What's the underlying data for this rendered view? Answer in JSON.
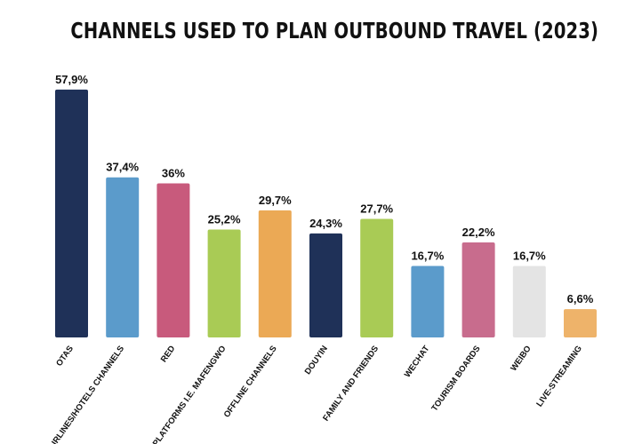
{
  "chart_data": {
    "type": "bar",
    "title": "CHANNELS USED TO PLAN OUTBOUND TRAVEL (2023)",
    "categories": [
      "OTAS",
      "AIRLINES/HOTELS CHANNELS",
      "RED",
      "UGC PLATFORMS I.E. MAFENGWO",
      "OFFLINE CHANNELS",
      "DOUYIN",
      "FAMILY AND FRIENDS",
      "WECHAT",
      "TOURISM BOARDS",
      "WEIBO",
      "LIVE-STREAMING"
    ],
    "values": [
      57.9,
      37.4,
      36,
      25.2,
      29.7,
      24.3,
      27.7,
      16.7,
      22.2,
      16.7,
      6.6
    ],
    "value_labels": [
      "57,9%",
      "37,4%",
      "36%",
      "25,2%",
      "29,7%",
      "24,3%",
      "27,7%",
      "16,7%",
      "22,2%",
      "16,7%",
      "6,6%"
    ],
    "colors": [
      "#1f3158",
      "#5b9bcb",
      "#c85a7c",
      "#a9cb55",
      "#eba955",
      "#1f3158",
      "#a9cb55",
      "#5b9bcb",
      "#c86c8d",
      "#e4e4e4",
      "#eeb36a"
    ],
    "ylim": [
      0,
      60
    ],
    "xlabel": "",
    "ylabel": "",
    "grid": false,
    "legend": "none"
  }
}
